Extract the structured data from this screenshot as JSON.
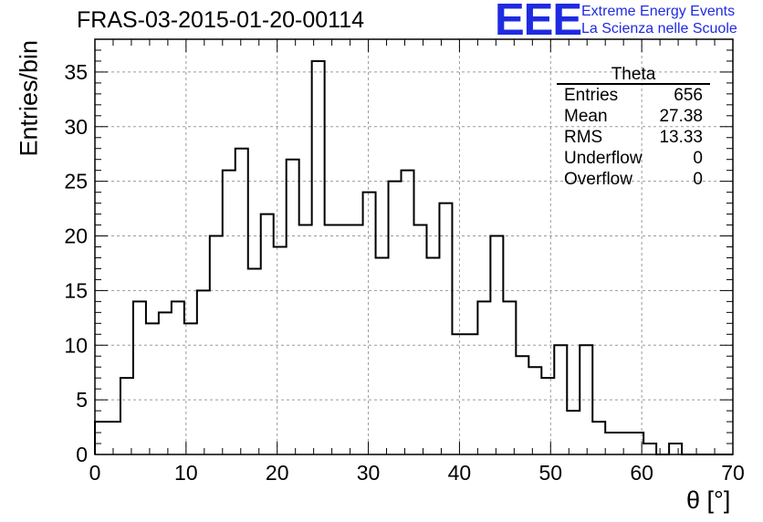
{
  "header": {
    "title": "FRAS-03-2015-01-20-00114",
    "logo": "EEE",
    "logo_line1": "Extreme Energy Events",
    "logo_line2": "La Scienza nelle Scuole"
  },
  "stats": {
    "name": "Theta",
    "rows": [
      {
        "label": "Entries",
        "value": "656"
      },
      {
        "label": "Mean",
        "value": "27.38"
      },
      {
        "label": "RMS",
        "value": "13.33"
      },
      {
        "label": "Underflow",
        "value": "0"
      },
      {
        "label": "Overflow",
        "value": "0"
      }
    ]
  },
  "colors": {
    "accent": "#1f2be0",
    "line": "#000000",
    "grid": "#9a9a9a"
  },
  "chart_data": {
    "type": "histogram",
    "title": "FRAS-03-2015-01-20-00114",
    "xlabel": "θ [°]",
    "ylabel": "Entries/bin",
    "xlim": [
      0,
      70
    ],
    "ylim": [
      0,
      38
    ],
    "grid": true,
    "bin_width": 1.4,
    "x_ticks": [
      0,
      10,
      20,
      30,
      40,
      50,
      60,
      70
    ],
    "y_ticks": [
      0,
      5,
      10,
      15,
      20,
      25,
      30,
      35
    ],
    "values": [
      3,
      3,
      7,
      14,
      12,
      13,
      14,
      12,
      15,
      20,
      26,
      28,
      17,
      22,
      19,
      27,
      21,
      36,
      21,
      21,
      21,
      24,
      18,
      25,
      26,
      21,
      18,
      23,
      11,
      11,
      14,
      20,
      14,
      9,
      8,
      7,
      10,
      4,
      10,
      3,
      2,
      2,
      2,
      1,
      0,
      1,
      0,
      0,
      0,
      0
    ]
  }
}
